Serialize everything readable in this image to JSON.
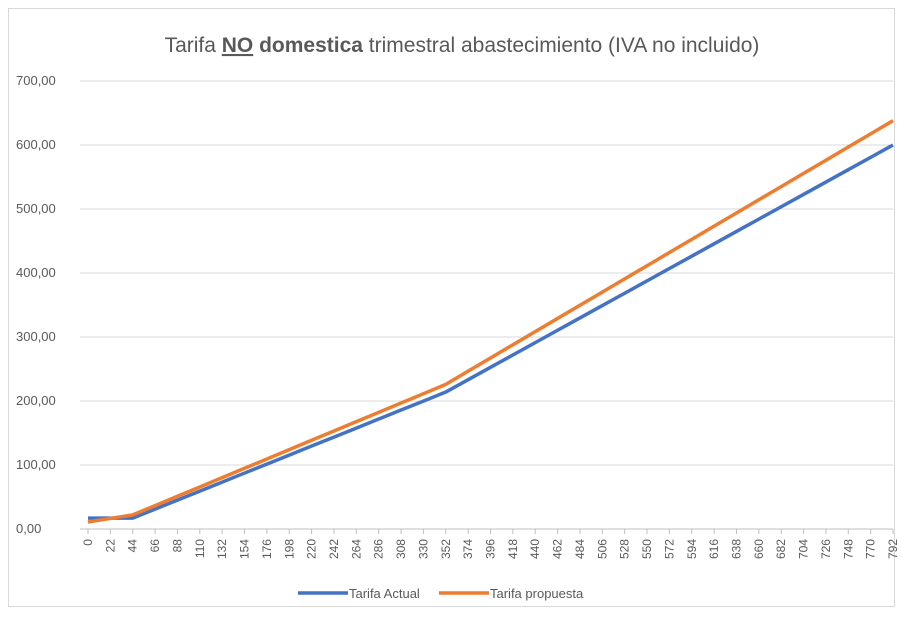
{
  "chart_data": {
    "type": "line",
    "title_parts": [
      "Tarifa ",
      "NO",
      " domestica",
      " trimestral abastecimiento (IVA no incluido)"
    ],
    "x": [
      0,
      22,
      44,
      66,
      88,
      110,
      132,
      154,
      176,
      198,
      220,
      242,
      264,
      286,
      308,
      330,
      352,
      374,
      396,
      418,
      440,
      462,
      484,
      506,
      528,
      550,
      572,
      594,
      616,
      638,
      660,
      682,
      704,
      726,
      748,
      770,
      792
    ],
    "xlim": [
      0,
      792
    ],
    "series": [
      {
        "name": "Tarifa Actual",
        "color": "#4472c4",
        "values": [
          17,
          17,
          17,
          31.1,
          45.1,
          59.2,
          73.3,
          87.4,
          101.4,
          115.5,
          129.6,
          143.6,
          157.7,
          171.8,
          185.9,
          199.9,
          214,
          233.3,
          252.6,
          271.9,
          291.2,
          310.5,
          329.8,
          349.1,
          368.4,
          387.7,
          407,
          426.3,
          445.6,
          464.9,
          484.2,
          503.5,
          522.8,
          542.1,
          561.4,
          580.7,
          600
        ]
      },
      {
        "name": "Tarifa propuesta",
        "color": "#ed7d31",
        "values": [
          11,
          16.5,
          22,
          36.6,
          51.1,
          65.7,
          80.3,
          94.9,
          109.4,
          124,
          138.6,
          153.1,
          167.7,
          182.3,
          196.9,
          211.4,
          226,
          246.6,
          267.2,
          287.8,
          308.4,
          329,
          349.6,
          370.2,
          390.8,
          411.4,
          432,
          452.6,
          473.2,
          493.8,
          514.4,
          535,
          555.6,
          576.2,
          596.8,
          617.4,
          638
        ]
      }
    ],
    "ylim": [
      0,
      700
    ],
    "yticks": [
      {
        "value": 0,
        "label": "0,00"
      },
      {
        "value": 100,
        "label": "100,00"
      },
      {
        "value": 200,
        "label": "200,00"
      },
      {
        "value": 300,
        "label": "300,00"
      },
      {
        "value": 400,
        "label": "400,00"
      },
      {
        "value": 500,
        "label": "500,00"
      },
      {
        "value": 600,
        "label": "600,00"
      },
      {
        "value": 700,
        "label": "700,00"
      }
    ],
    "grid": true,
    "legend": "bottom"
  }
}
